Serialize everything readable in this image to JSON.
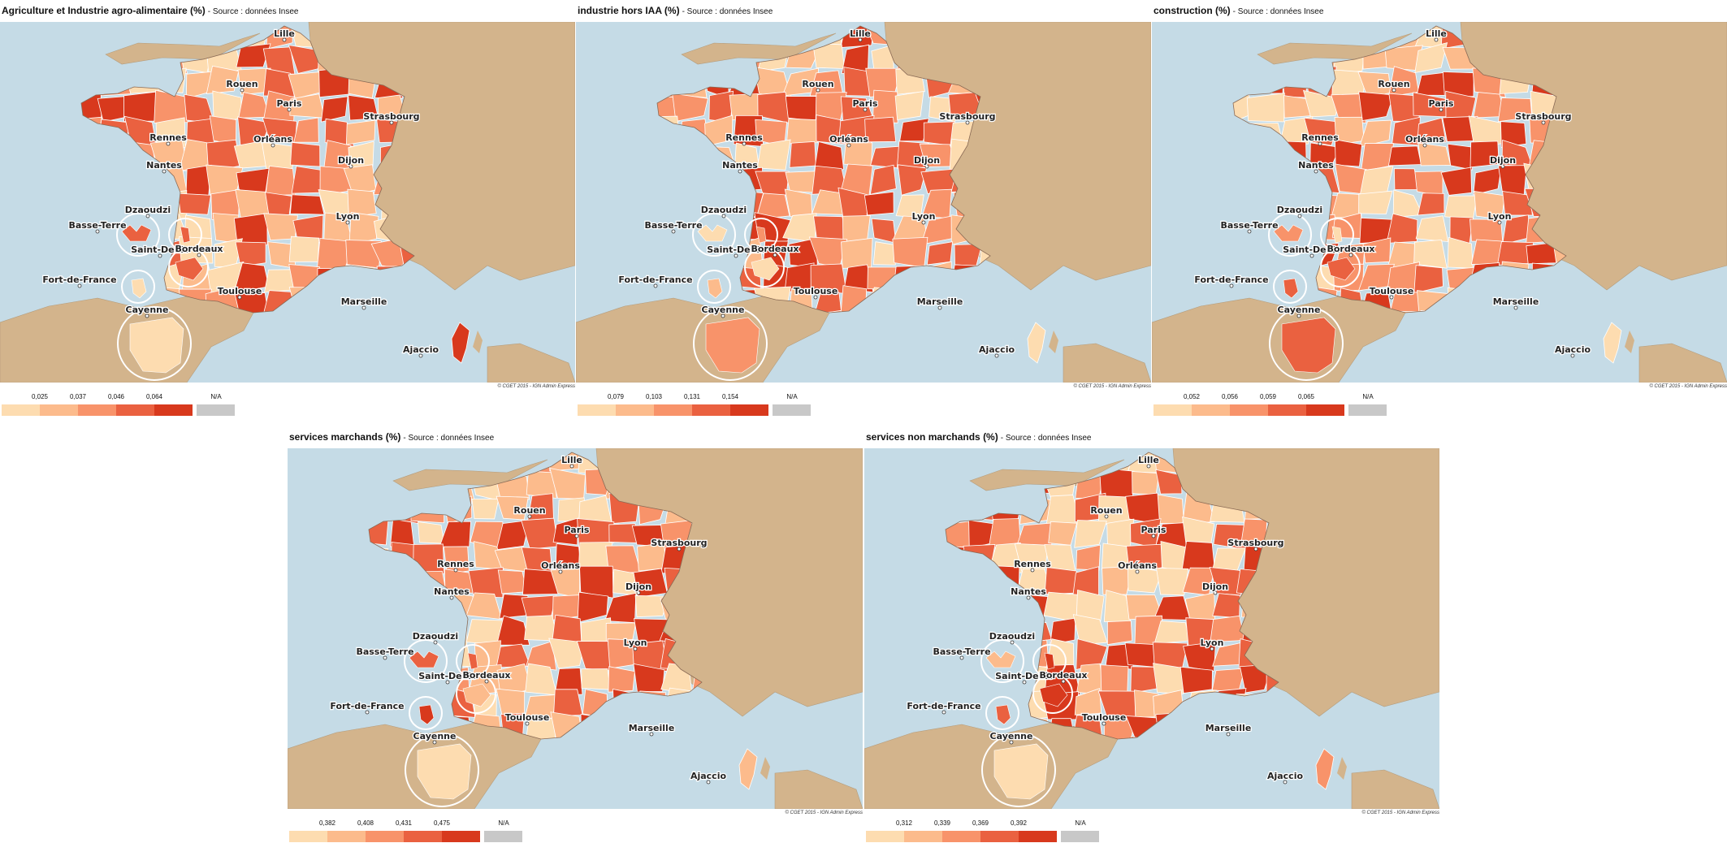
{
  "colors": {
    "sea": "#c5dbe6",
    "land": "#d3b48c",
    "na": "#c8c8c8",
    "scale": [
      "#fddcb0",
      "#fcbb8c",
      "#f8936a",
      "#ea6140",
      "#d8391d"
    ]
  },
  "panels": [
    {
      "title": "Agriculture et Industrie agro-alimentaire (%)",
      "source": "- Source : données Insee",
      "breaks": [
        "0,025",
        "0,037",
        "0,046",
        "0,064"
      ],
      "na_label": "N/A",
      "credit": "© CGET 2015 - IGN Admin Express",
      "seed": 11
    },
    {
      "title": "industrie hors IAA (%)",
      "source": "- Source : données Insee",
      "breaks": [
        "0,079",
        "0,103",
        "0,131",
        "0,154"
      ],
      "na_label": "N/A",
      "credit": "© CGET 2015 - IGN Admin Express",
      "seed": 27
    },
    {
      "title": "construction (%)",
      "source": "- Source : données Insee",
      "breaks": [
        "0,052",
        "0,056",
        "0,059",
        "0,065"
      ],
      "na_label": "N/A",
      "credit": "© CGET 2015 - IGN Admin Express",
      "seed": 43
    },
    {
      "title": "services marchands (%)",
      "source": "- Source : données Insee",
      "breaks": [
        "0,382",
        "0,408",
        "0,431",
        "0,475"
      ],
      "na_label": "N/A",
      "credit": "© CGET 2015 - IGN Admin Express",
      "seed": 59
    },
    {
      "title": "services non marchands (%)",
      "source": "- Source : données Insee",
      "breaks": [
        "0,312",
        "0,339",
        "0,369",
        "0,392"
      ],
      "na_label": "N/A",
      "credit": "© CGET 2015 - IGN Admin Express",
      "seed": 71
    }
  ],
  "cities": [
    "Lille",
    "Rouen",
    "Paris",
    "Strasbourg",
    "Rennes",
    "Orléans",
    "Nantes",
    "Dijon",
    "Dzaoudzi",
    "Lyon",
    "Basse-Terre",
    "Saint-Denis",
    "Bordeaux",
    "Fort-de-France",
    "Toulouse",
    "Marseille",
    "Cayenne",
    "Ajaccio"
  ]
}
